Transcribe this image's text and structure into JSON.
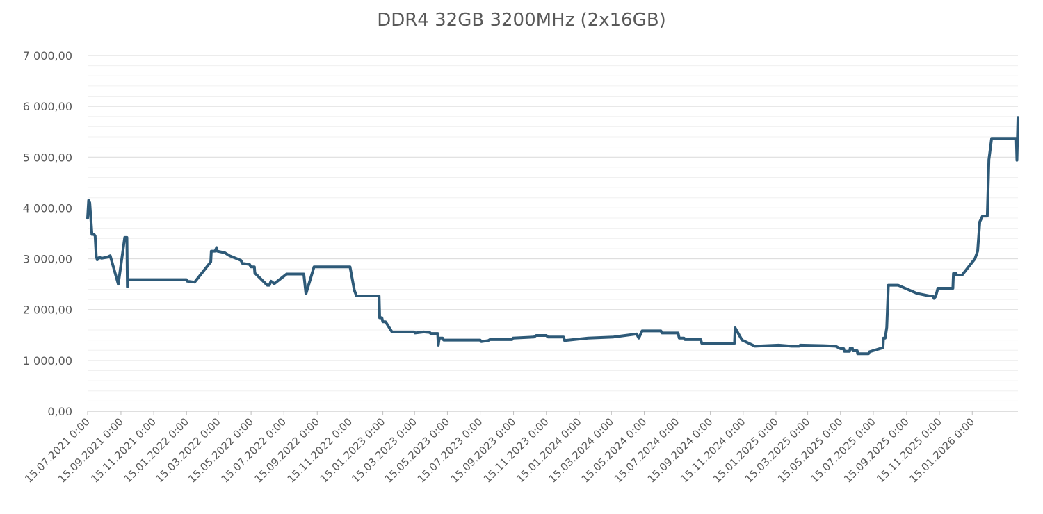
{
  "chart_data": {
    "type": "line",
    "title": "DDR4 32GB 3200MHz (2x16GB)",
    "xlabel": "",
    "ylabel": "",
    "ylim": [
      0,
      7000
    ],
    "y_ticks": [
      "0,00",
      "1 000,00",
      "2 000,00",
      "3 000,00",
      "4 000,00",
      "5 000,00",
      "6 000,00",
      "7 000,00"
    ],
    "x_tick_labels": [
      "15.07.2021 0:00",
      "15.09.2021 0:00",
      "15.11.2021 0:00",
      "15.01.2022 0:00",
      "15.03.2022 0:00",
      "15.05.2022 0:00",
      "15.07.2022 0:00",
      "15.09.2022 0:00",
      "15.11.2022 0:00",
      "15.01.2023 0:00",
      "15.03.2023 0:00",
      "15.05.2023 0:00",
      "15.07.2023 0:00",
      "15.09.2023 0:00",
      "15.11.2023 0:00",
      "15.01.2024 0:00",
      "15.03.2024 0:00",
      "15.05.2024 0:00",
      "15.07.2024 0:00",
      "15.09.2024 0:00",
      "15.11.2024 0:00",
      "15.01.2025 0:00",
      "15.03.2025 0:00",
      "15.05.2025 0:00",
      "15.07.2025 0:00",
      "15.09.2025 0:00",
      "15.11.2025 0:00",
      "15.01.2026 0:00"
    ],
    "grid": "horizontal",
    "line_color": "#2e5a78",
    "series": [
      {
        "points": [
          [
            "2021-07-15",
            3800
          ],
          [
            "2021-07-17",
            4150
          ],
          [
            "2021-07-19",
            4100
          ],
          [
            "2021-07-23",
            3480
          ],
          [
            "2021-07-27",
            3480
          ],
          [
            "2021-07-29",
            3450
          ],
          [
            "2021-07-31",
            3050
          ],
          [
            "2021-08-02",
            2980
          ],
          [
            "2021-08-04",
            3000
          ],
          [
            "2021-08-06",
            3030
          ],
          [
            "2021-08-10",
            3010
          ],
          [
            "2021-08-20",
            3030
          ],
          [
            "2021-08-26",
            3060
          ],
          [
            "2021-09-10",
            2500
          ],
          [
            "2021-09-22",
            3420
          ],
          [
            "2021-09-26",
            3420
          ],
          [
            "2021-09-27",
            2450
          ],
          [
            "2021-09-28",
            2590
          ],
          [
            "2022-01-15",
            2590
          ],
          [
            "2022-01-16",
            2560
          ],
          [
            "2022-01-30",
            2540
          ],
          [
            "2022-03-01",
            2940
          ],
          [
            "2022-03-02",
            3150
          ],
          [
            "2022-03-09",
            3150
          ],
          [
            "2022-03-12",
            3220
          ],
          [
            "2022-03-13",
            3150
          ],
          [
            "2022-03-27",
            3120
          ],
          [
            "2022-04-05",
            3060
          ],
          [
            "2022-04-26",
            2970
          ],
          [
            "2022-04-29",
            2910
          ],
          [
            "2022-05-12",
            2890
          ],
          [
            "2022-05-15",
            2840
          ],
          [
            "2022-05-21",
            2840
          ],
          [
            "2022-05-22",
            2720
          ],
          [
            "2022-06-14",
            2480
          ],
          [
            "2022-06-18",
            2480
          ],
          [
            "2022-06-21",
            2560
          ],
          [
            "2022-06-27",
            2510
          ],
          [
            "2022-07-20",
            2700
          ],
          [
            "2022-08-21",
            2700
          ],
          [
            "2022-08-25",
            2310
          ],
          [
            "2022-09-09",
            2840
          ],
          [
            "2022-11-15",
            2840
          ],
          [
            "2022-11-23",
            2380
          ],
          [
            "2022-11-27",
            2270
          ],
          [
            "2023-01-08",
            2270
          ],
          [
            "2023-01-09",
            1840
          ],
          [
            "2023-01-13",
            1840
          ],
          [
            "2023-01-15",
            1760
          ],
          [
            "2023-01-20",
            1760
          ],
          [
            "2023-02-01",
            1560
          ],
          [
            "2023-03-14",
            1560
          ],
          [
            "2023-03-16",
            1540
          ],
          [
            "2023-04-01",
            1560
          ],
          [
            "2023-04-12",
            1550
          ],
          [
            "2023-04-14",
            1530
          ],
          [
            "2023-04-27",
            1530
          ],
          [
            "2023-04-28",
            1300
          ],
          [
            "2023-04-30",
            1440
          ],
          [
            "2023-05-06",
            1440
          ],
          [
            "2023-05-08",
            1400
          ],
          [
            "2023-07-15",
            1400
          ],
          [
            "2023-07-17",
            1370
          ],
          [
            "2023-07-30",
            1390
          ],
          [
            "2023-08-02",
            1410
          ],
          [
            "2023-09-12",
            1410
          ],
          [
            "2023-09-14",
            1440
          ],
          [
            "2023-10-07",
            1450
          ],
          [
            "2023-10-23",
            1460
          ],
          [
            "2023-10-27",
            1490
          ],
          [
            "2023-11-15",
            1490
          ],
          [
            "2023-11-18",
            1460
          ],
          [
            "2023-12-17",
            1460
          ],
          [
            "2023-12-19",
            1390
          ],
          [
            "2024-02-01",
            1440
          ],
          [
            "2024-03-19",
            1460
          ],
          [
            "2024-05-01",
            1520
          ],
          [
            "2024-05-05",
            1440
          ],
          [
            "2024-05-11",
            1580
          ],
          [
            "2024-06-15",
            1580
          ],
          [
            "2024-06-17",
            1540
          ],
          [
            "2024-07-17",
            1540
          ],
          [
            "2024-07-19",
            1440
          ],
          [
            "2024-07-28",
            1440
          ],
          [
            "2024-07-30",
            1410
          ],
          [
            "2024-08-28",
            1410
          ],
          [
            "2024-08-30",
            1340
          ],
          [
            "2024-10-30",
            1340
          ],
          [
            "2024-10-31",
            1640
          ],
          [
            "2024-11-13",
            1400
          ],
          [
            "2024-11-25",
            1340
          ],
          [
            "2024-12-07",
            1280
          ],
          [
            "2025-01-20",
            1300
          ],
          [
            "2025-02-13",
            1280
          ],
          [
            "2025-02-27",
            1280
          ],
          [
            "2025-03-01",
            1300
          ],
          [
            "2025-04-13",
            1290
          ],
          [
            "2025-05-06",
            1280
          ],
          [
            "2025-05-15",
            1230
          ],
          [
            "2025-05-21",
            1230
          ],
          [
            "2025-05-22",
            1180
          ],
          [
            "2025-06-01",
            1180
          ],
          [
            "2025-06-02",
            1240
          ],
          [
            "2025-06-06",
            1240
          ],
          [
            "2025-06-07",
            1190
          ],
          [
            "2025-06-15",
            1190
          ],
          [
            "2025-06-16",
            1130
          ],
          [
            "2025-07-06",
            1130
          ],
          [
            "2025-07-08",
            1170
          ],
          [
            "2025-08-02",
            1250
          ],
          [
            "2025-08-03",
            1440
          ],
          [
            "2025-08-06",
            1440
          ],
          [
            "2025-08-09",
            1650
          ],
          [
            "2025-08-12",
            2480
          ],
          [
            "2025-08-30",
            2480
          ],
          [
            "2025-10-04",
            2320
          ],
          [
            "2025-10-27",
            2270
          ],
          [
            "2025-11-03",
            2270
          ],
          [
            "2025-11-05",
            2220
          ],
          [
            "2025-11-08",
            2260
          ],
          [
            "2025-11-12",
            2420
          ],
          [
            "2025-12-10",
            2420
          ],
          [
            "2025-12-11",
            2710
          ],
          [
            "2025-12-16",
            2710
          ],
          [
            "2025-12-17",
            2680
          ],
          [
            "2025-12-27",
            2680
          ],
          [
            "2026-01-20",
            3000
          ],
          [
            "2026-01-25",
            3150
          ],
          [
            "2026-01-29",
            3730
          ],
          [
            "2026-02-03",
            3840
          ],
          [
            "2026-02-12",
            3840
          ],
          [
            "2026-02-15",
            4950
          ],
          [
            "2026-02-20",
            5370
          ],
          [
            "2026-04-07",
            5370
          ],
          [
            "2026-04-08",
            4940
          ],
          [
            "2026-04-10",
            5780
          ]
        ]
      }
    ]
  }
}
